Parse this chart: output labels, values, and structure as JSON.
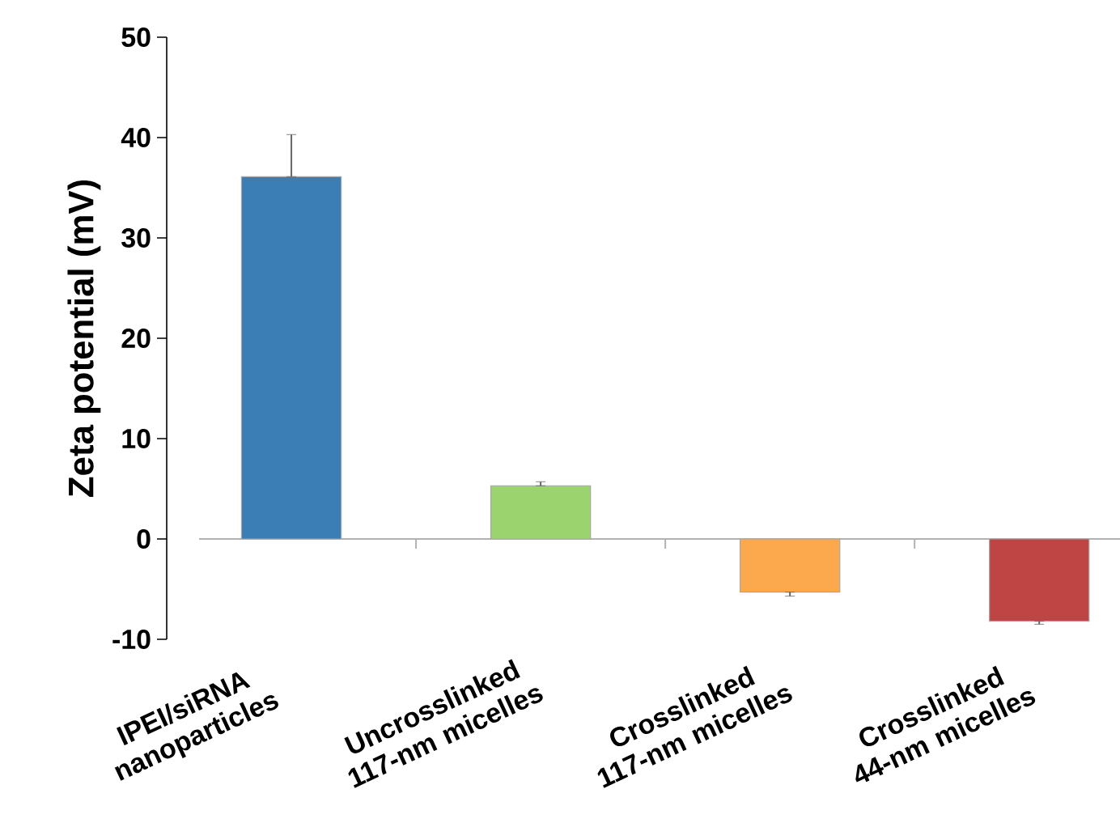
{
  "chart_data": {
    "type": "bar",
    "ylabel": "Zeta potential (mV)",
    "categories": [
      "IPEI/siRNA nanoparticles",
      "Uncrosslinked 117-nm micelles",
      "Crosslinked 117-nm micelles",
      "Crosslinked 44-nm micelles"
    ],
    "values": [
      36.1,
      5.3,
      -5.3,
      -8.2
    ],
    "errors": [
      [
        36.1,
        40.3
      ],
      [
        5.3,
        5.7
      ],
      [
        -5.7,
        -5.3
      ],
      [
        -8.5,
        -8.2
      ]
    ],
    "colors": [
      "#3b7db5",
      "#9bd46f",
      "#fca84c",
      "#bf4545"
    ],
    "ylim": [
      -10,
      50
    ],
    "yticks": [
      -10,
      0,
      10,
      20,
      30,
      40,
      50
    ]
  }
}
